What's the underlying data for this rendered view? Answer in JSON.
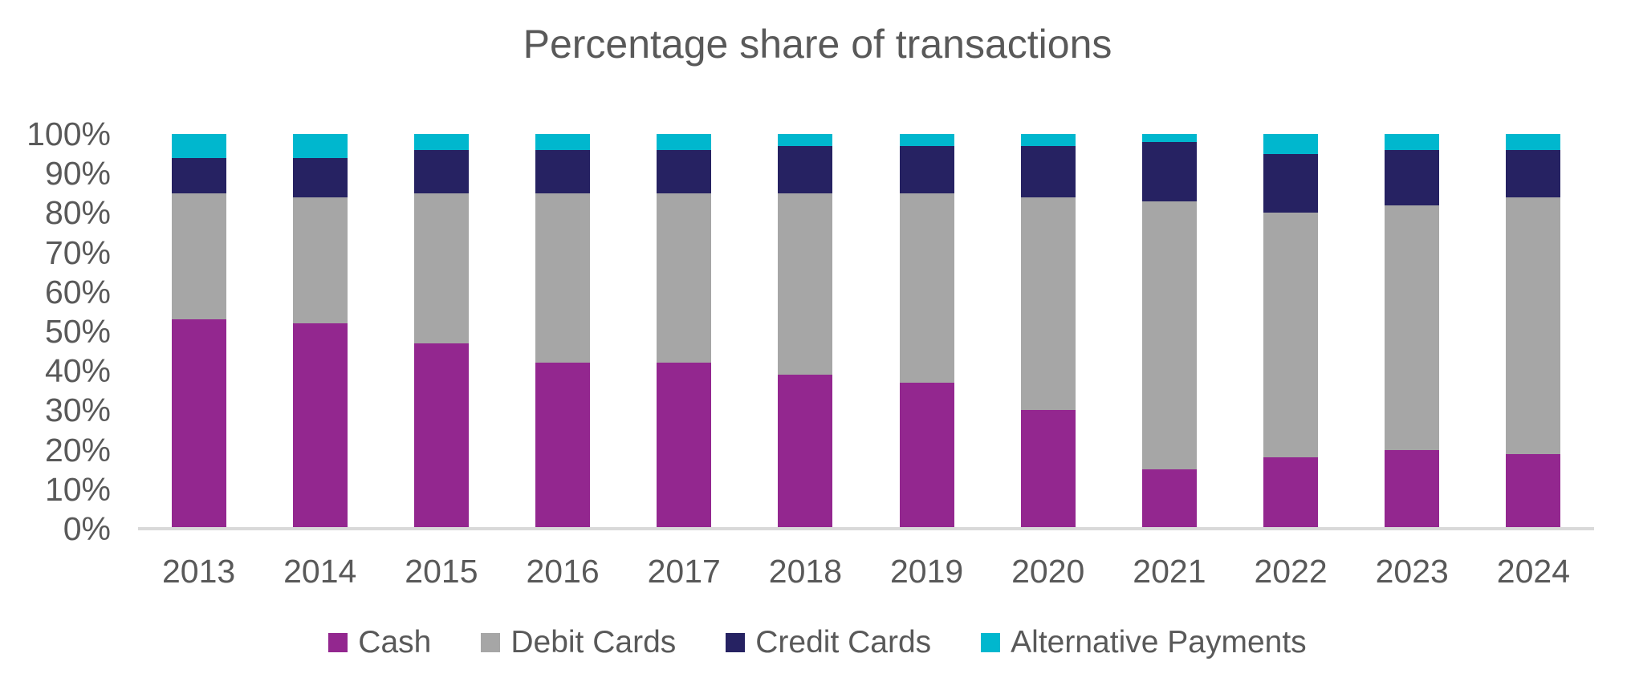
{
  "chart_data": {
    "type": "bar",
    "stacked": true,
    "percent_stacked": true,
    "title": "Percentage share of transactions",
    "categories": [
      "2013",
      "2014",
      "2015",
      "2016",
      "2017",
      "2018",
      "2019",
      "2020",
      "2021",
      "2022",
      "2023",
      "2024"
    ],
    "series": [
      {
        "name": "Cash",
        "color": "#93278F",
        "values": [
          53,
          52,
          47,
          42,
          42,
          39,
          37,
          30,
          15,
          18,
          20,
          19
        ]
      },
      {
        "name": "Debit Cards",
        "color": "#A6A6A6",
        "values": [
          32,
          32,
          38,
          43,
          43,
          46,
          48,
          54,
          68,
          62,
          62,
          65
        ]
      },
      {
        "name": "Credit Cards",
        "color": "#262262",
        "values": [
          9,
          10,
          11,
          11,
          11,
          12,
          12,
          13,
          15,
          15,
          14,
          12
        ]
      },
      {
        "name": "Alternative Payments",
        "color": "#00B7CE",
        "values": [
          6,
          6,
          4,
          4,
          4,
          3,
          3,
          3,
          2,
          5,
          4,
          4
        ]
      }
    ],
    "y_ticks": [
      "0%",
      "10%",
      "20%",
      "30%",
      "40%",
      "50%",
      "60%",
      "70%",
      "80%",
      "90%",
      "100%"
    ],
    "ylim": [
      0,
      100
    ],
    "xlabel": "",
    "ylabel": "",
    "grid": "off",
    "legend_position": "bottom"
  },
  "styles": {
    "text_color": "#595959",
    "axis_line_color": "#D9D9D9",
    "background": "#FFFFFF"
  }
}
